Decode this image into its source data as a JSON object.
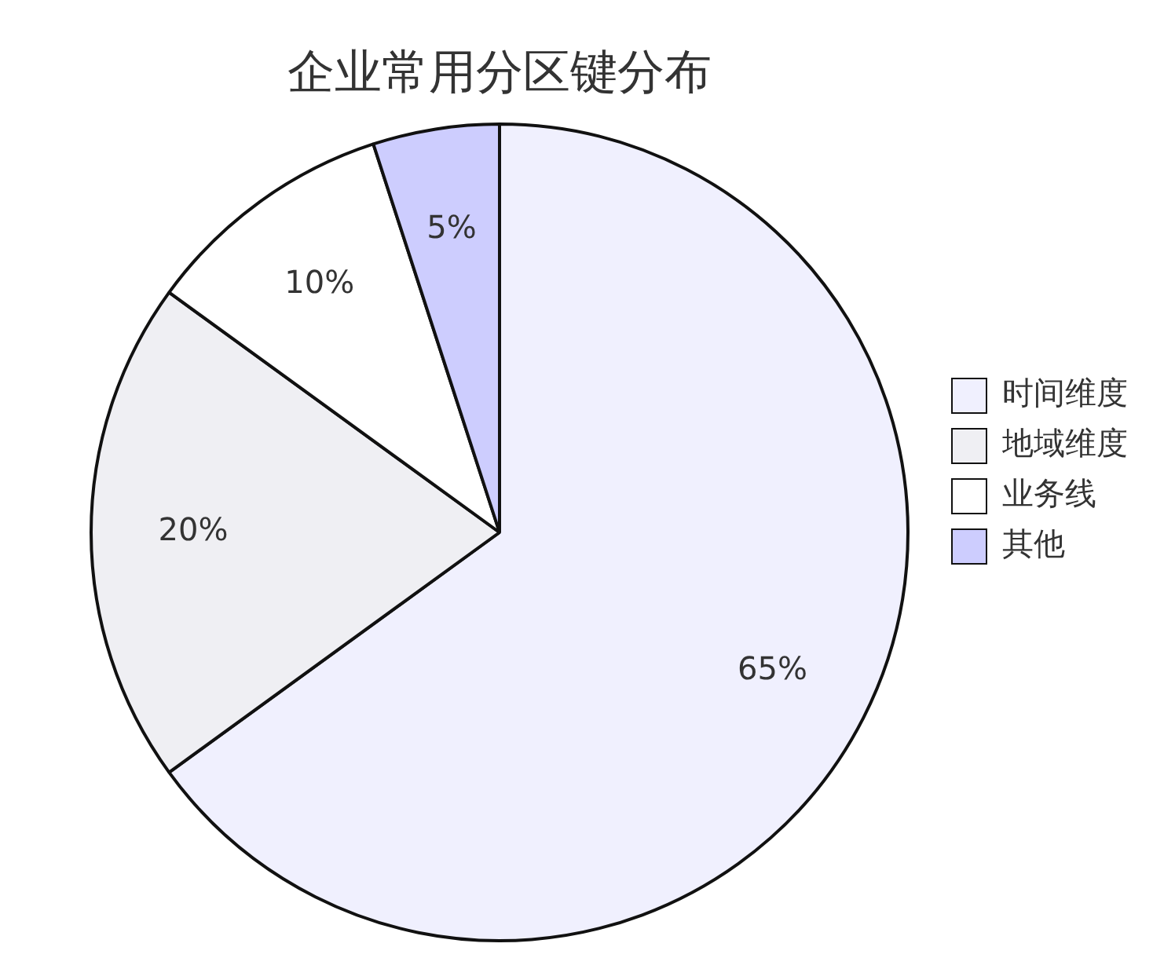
{
  "chart_data": {
    "type": "pie",
    "title": "企业常用分区键分布",
    "categories": [
      "时间维度",
      "地域维度",
      "业务线",
      "其他"
    ],
    "values": [
      65,
      20,
      10,
      5
    ],
    "colors": [
      "#f0f0fe",
      "#efeff3",
      "#ffffff",
      "#cdcdfe"
    ],
    "value_labels": [
      "65%",
      "20%",
      "10%",
      "5%"
    ],
    "legend": "right"
  }
}
